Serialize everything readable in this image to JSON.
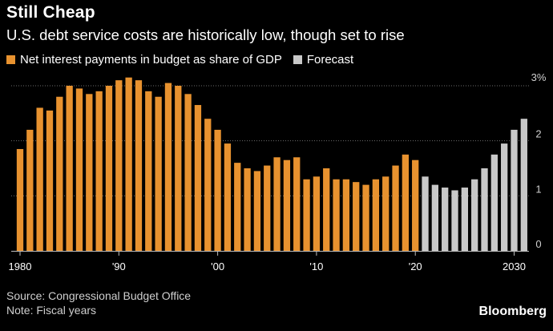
{
  "title": "Still Cheap",
  "subtitle": "U.S. debt service costs are historically low, though set to rise",
  "legend": {
    "actual_label": "Net interest payments in budget as share of GDP",
    "forecast_label": "Forecast"
  },
  "footer": {
    "source": "Source: Congressional Budget Office",
    "note": "Note: Fiscal years"
  },
  "brand": "Bloomberg",
  "colors": {
    "actual": "#e8922f",
    "forecast": "#c8c8c8",
    "grid": "#6b6b6b",
    "background": "#000000"
  },
  "chart_data": {
    "type": "bar",
    "title": "Still Cheap",
    "ylim": [
      0,
      3
    ],
    "y_ticks": [
      0,
      1,
      2,
      3
    ],
    "y_tick_labels": [
      "0",
      "1",
      "2",
      "3%"
    ],
    "x_ticks": [
      1980,
      1990,
      2000,
      2010,
      2020,
      2030
    ],
    "x_tick_labels": [
      "1980",
      "'90",
      "'00",
      "'10",
      "'20",
      "2030"
    ],
    "grid": true,
    "series": [
      {
        "name": "Net interest payments in budget as share of GDP",
        "x": [
          1980,
          1981,
          1982,
          1983,
          1984,
          1985,
          1986,
          1987,
          1988,
          1989,
          1990,
          1991,
          1992,
          1993,
          1994,
          1995,
          1996,
          1997,
          1998,
          1999,
          2000,
          2001,
          2002,
          2003,
          2004,
          2005,
          2006,
          2007,
          2008,
          2009,
          2010,
          2011,
          2012,
          2013,
          2014,
          2015,
          2016,
          2017,
          2018,
          2019,
          2020
        ],
        "values": [
          1.85,
          2.2,
          2.6,
          2.55,
          2.8,
          3.0,
          2.95,
          2.85,
          2.9,
          3.0,
          3.1,
          3.15,
          3.1,
          2.9,
          2.8,
          3.05,
          3.0,
          2.85,
          2.65,
          2.4,
          2.2,
          1.95,
          1.6,
          1.5,
          1.45,
          1.55,
          1.7,
          1.65,
          1.7,
          1.3,
          1.35,
          1.5,
          1.3,
          1.3,
          1.25,
          1.2,
          1.3,
          1.35,
          1.55,
          1.75,
          1.65
        ]
      },
      {
        "name": "Forecast",
        "x": [
          2021,
          2022,
          2023,
          2024,
          2025,
          2026,
          2027,
          2028,
          2029,
          2030,
          2031
        ],
        "values": [
          1.35,
          1.2,
          1.15,
          1.1,
          1.15,
          1.3,
          1.5,
          1.75,
          1.95,
          2.2,
          2.4
        ]
      }
    ]
  }
}
